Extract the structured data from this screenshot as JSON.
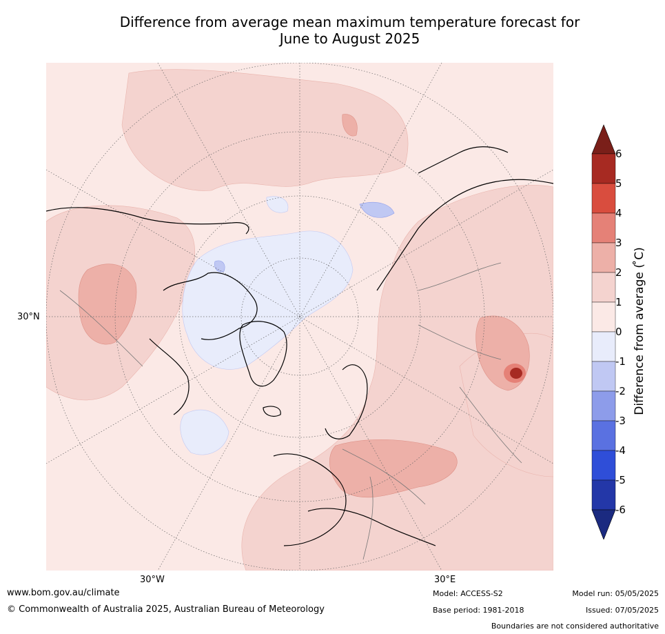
{
  "title_line1": "Difference from average mean maximum temperature forecast for",
  "title_line2": "June to August 2025",
  "map": {
    "lat_label": "30°N",
    "lon_labels": [
      "30°W",
      "30°E"
    ]
  },
  "colorbar": {
    "label": "Difference from average ( ̊C)",
    "ticks": [
      "6",
      "5",
      "4",
      "3",
      "2",
      "1",
      "0",
      "-1",
      "-2",
      "-3",
      "-4",
      "-5",
      "-6"
    ],
    "colors": [
      "#7a1f19",
      "#a72a22",
      "#d94d3e",
      "#e58177",
      "#edb0a8",
      "#f4d3cf",
      "#fbe9e6",
      "#e8ecfb",
      "#c0c8f3",
      "#8d9cea",
      "#5a71e1",
      "#2f4ed8",
      "#2337a8",
      "#1b2a80"
    ]
  },
  "footer": {
    "url": "www.bom.gov.au/climate",
    "copyright": "© Commonwealth of Australia 2025, Australian Bureau of Meteorology",
    "model": "Model: ACCESS-S2",
    "base_period": "Base period: 1981-2018",
    "model_run": "Model run: 05/05/2025",
    "issued": "Issued: 07/05/2025",
    "disclaimer": "Boundaries are not considered authoritative"
  }
}
